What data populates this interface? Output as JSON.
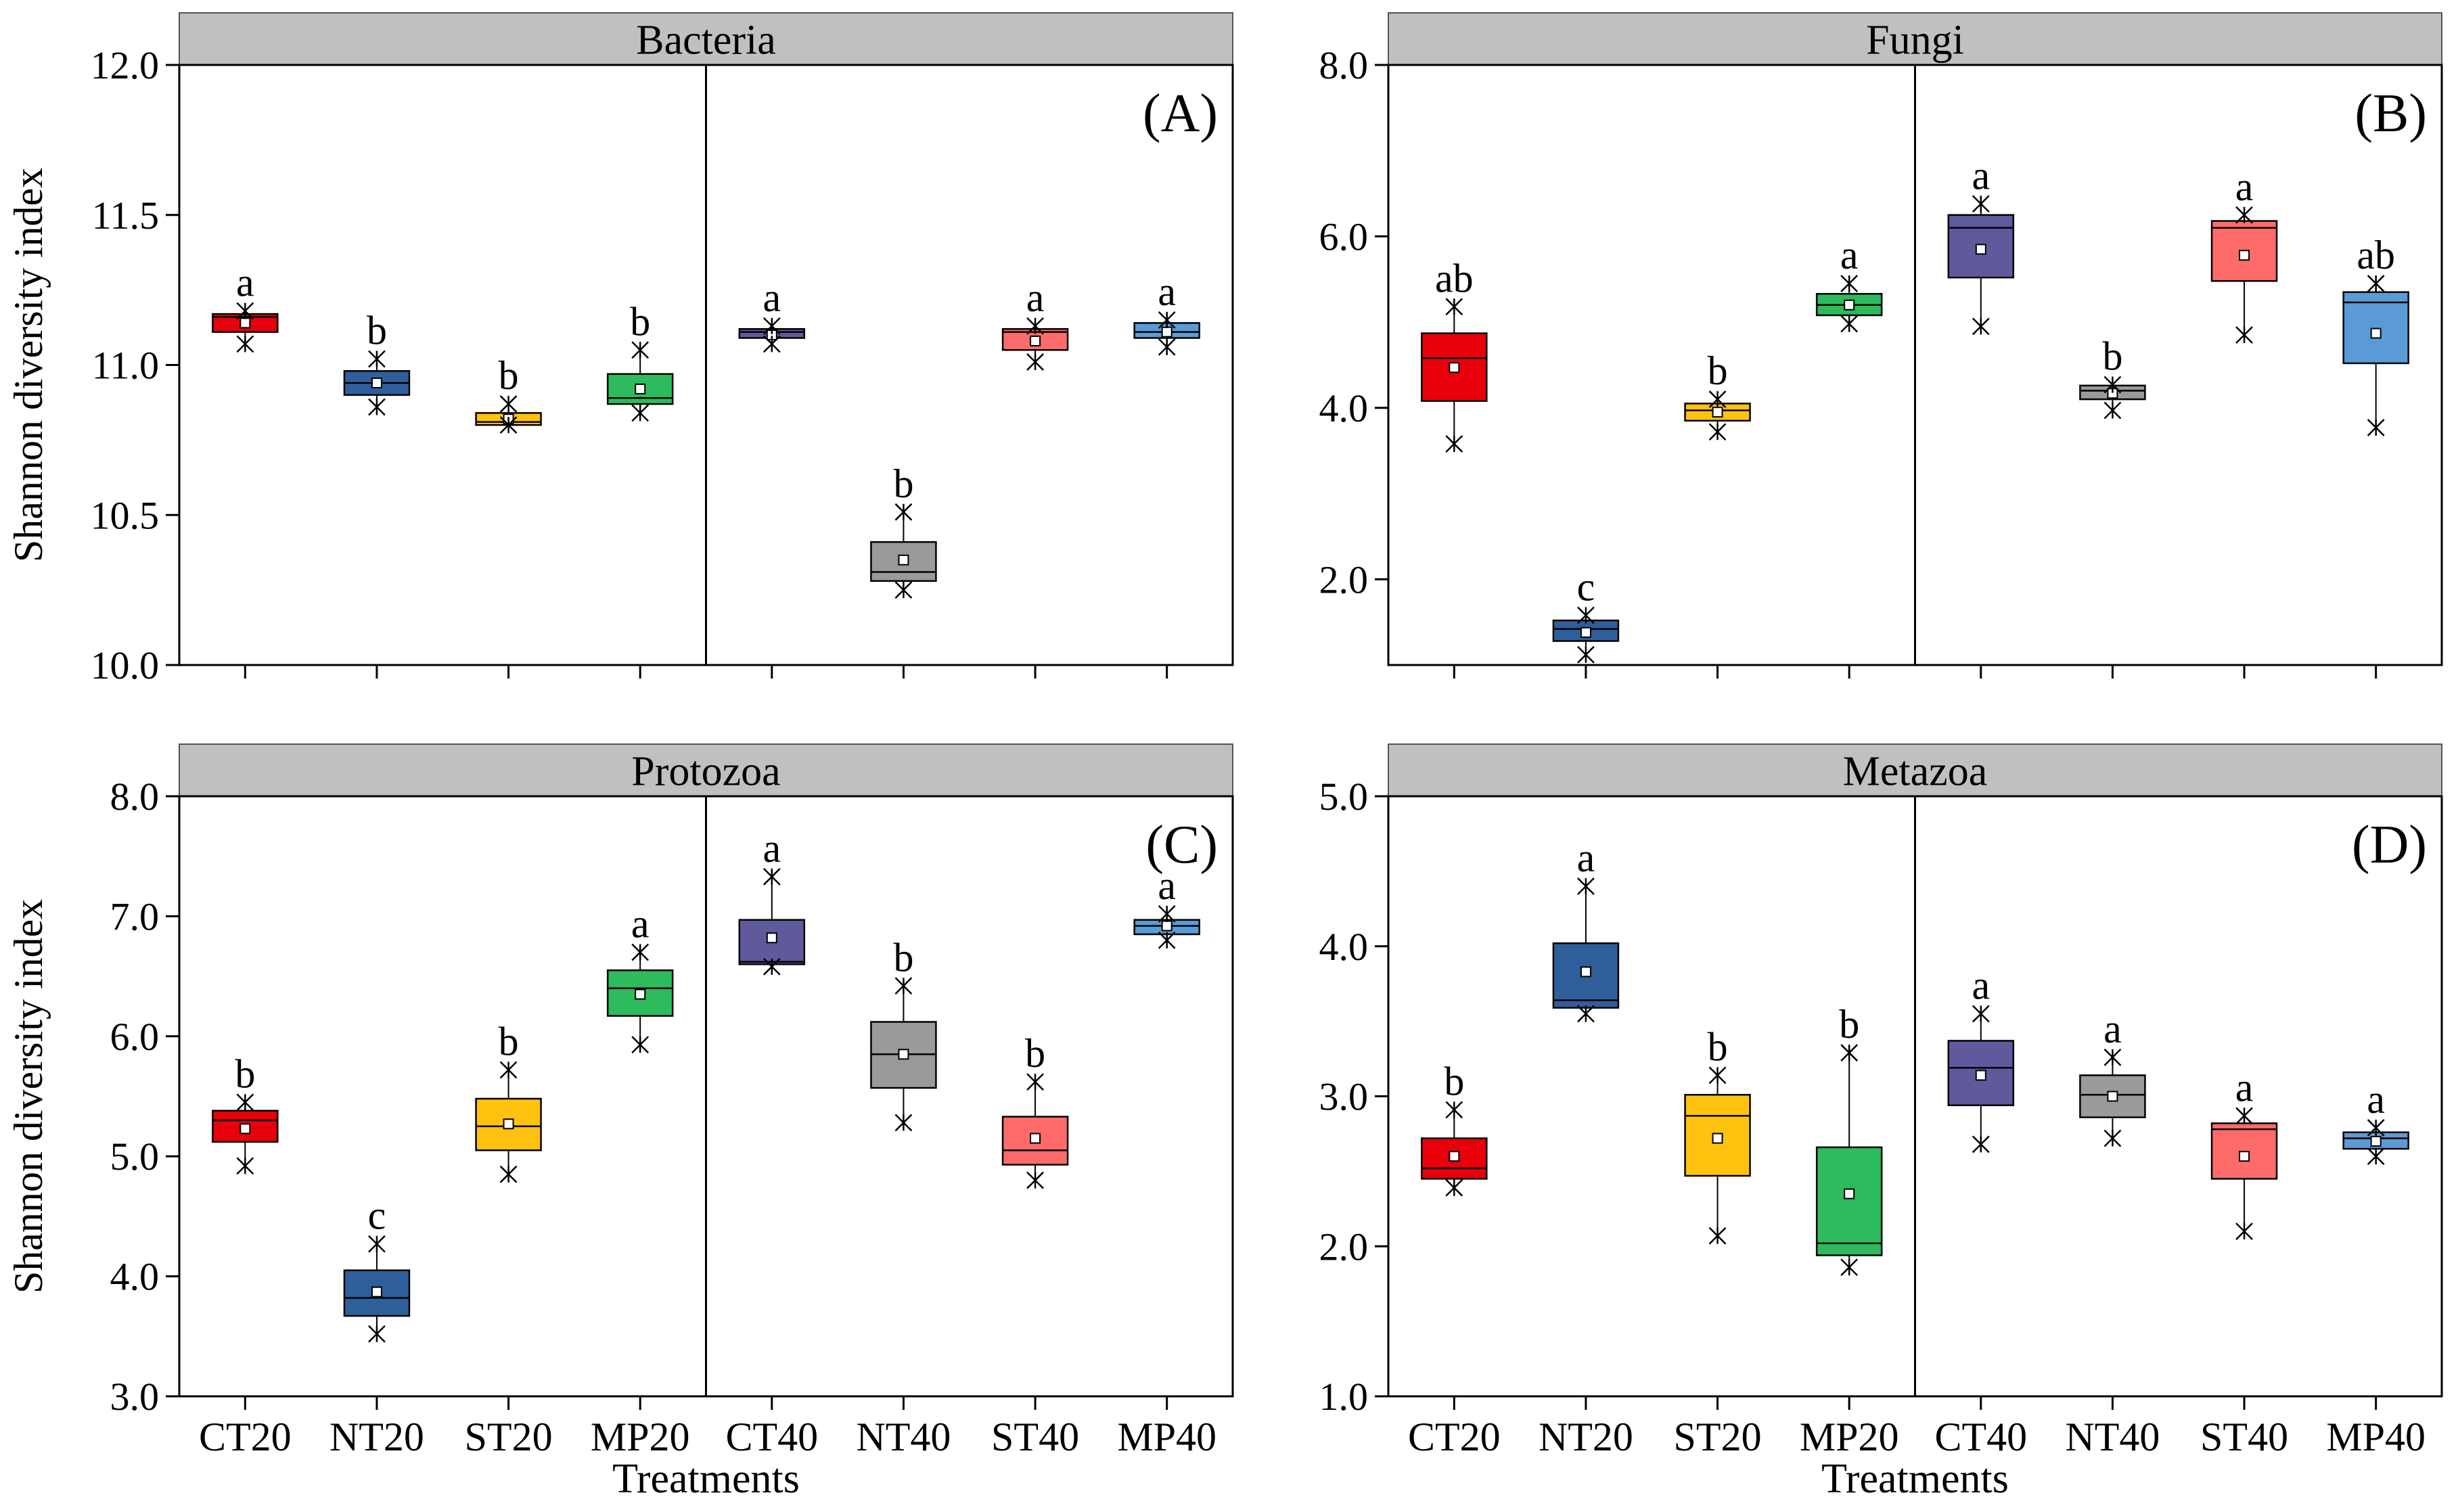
{
  "shared": {
    "y_axis_label": "Shannon diversity index",
    "x_axis_label": "Treatments",
    "treatments": [
      "CT20",
      "NT20",
      "ST20",
      "MP20",
      "CT40",
      "NT40",
      "ST40",
      "MP40"
    ],
    "colors": {
      "CT20": "#e8000b",
      "NT20": "#2f5f9b",
      "ST20": "#ffc20e",
      "MP20": "#2dbb5d",
      "CT40": "#5f5a9c",
      "NT40": "#9a9a9a",
      "ST40": "#ff6b6b",
      "MP40": "#5b9bd5",
      "strip": "#c0c0c0"
    }
  },
  "chart_data": [
    {
      "type": "box",
      "title": "Bacteria",
      "panel_label": "(A)",
      "xlabel": "",
      "ylabel": "Shannon diversity index",
      "ylim": [
        10.0,
        12.0
      ],
      "yticks": [
        10.0,
        10.5,
        11.0,
        11.5,
        12.0
      ],
      "tick_decimals": 1,
      "show_xtick_labels": false,
      "categories": [
        "CT20",
        "NT20",
        "ST20",
        "MP20",
        "CT40",
        "NT40",
        "ST40",
        "MP40"
      ],
      "boxes": [
        {
          "q1": 11.11,
          "median": 11.16,
          "q3": 11.17,
          "mean": 11.14,
          "min": 11.07,
          "max": 11.18,
          "letter": "a"
        },
        {
          "q1": 10.9,
          "median": 10.94,
          "q3": 10.98,
          "mean": 10.94,
          "min": 10.86,
          "max": 11.02,
          "letter": "b"
        },
        {
          "q1": 10.8,
          "median": 10.81,
          "q3": 10.84,
          "mean": 10.82,
          "min": 10.8,
          "max": 10.87,
          "letter": "b"
        },
        {
          "q1": 10.87,
          "median": 10.89,
          "q3": 10.97,
          "mean": 10.92,
          "min": 10.84,
          "max": 11.05,
          "letter": "b"
        },
        {
          "q1": 11.09,
          "median": 11.11,
          "q3": 11.12,
          "mean": 11.1,
          "min": 11.07,
          "max": 11.13,
          "letter": "a"
        },
        {
          "q1": 10.28,
          "median": 10.31,
          "q3": 10.41,
          "mean": 10.35,
          "min": 10.25,
          "max": 10.51,
          "letter": "b"
        },
        {
          "q1": 11.05,
          "median": 11.11,
          "q3": 11.12,
          "mean": 11.08,
          "min": 11.01,
          "max": 11.13,
          "letter": "a"
        },
        {
          "q1": 11.09,
          "median": 11.11,
          "q3": 11.14,
          "mean": 11.11,
          "min": 11.06,
          "max": 11.15,
          "letter": "a"
        }
      ]
    },
    {
      "type": "box",
      "title": "Fungi",
      "panel_label": "(B)",
      "xlabel": "",
      "ylabel": "",
      "ylim": [
        1.0,
        8.0
      ],
      "yticks": [
        2.0,
        4.0,
        6.0,
        8.0
      ],
      "tick_decimals": 1,
      "show_xtick_labels": false,
      "categories": [
        "CT20",
        "NT20",
        "ST20",
        "MP20",
        "CT40",
        "NT40",
        "ST40",
        "MP40"
      ],
      "boxes": [
        {
          "q1": 4.08,
          "median": 4.58,
          "q3": 4.87,
          "mean": 4.47,
          "min": 3.58,
          "max": 5.18,
          "letter": "ab"
        },
        {
          "q1": 1.28,
          "median": 1.42,
          "q3": 1.52,
          "mean": 1.38,
          "min": 1.12,
          "max": 1.58,
          "letter": "c"
        },
        {
          "q1": 3.85,
          "median": 3.97,
          "q3": 4.05,
          "mean": 3.95,
          "min": 3.72,
          "max": 4.1,
          "letter": "b"
        },
        {
          "q1": 5.08,
          "median": 5.2,
          "q3": 5.33,
          "mean": 5.2,
          "min": 4.98,
          "max": 5.45,
          "letter": "a"
        },
        {
          "q1": 5.52,
          "median": 6.1,
          "q3": 6.25,
          "mean": 5.85,
          "min": 4.95,
          "max": 6.38,
          "letter": "a"
        },
        {
          "q1": 4.1,
          "median": 4.2,
          "q3": 4.26,
          "mean": 4.17,
          "min": 3.97,
          "max": 4.27,
          "letter": "b"
        },
        {
          "q1": 5.48,
          "median": 6.1,
          "q3": 6.18,
          "mean": 5.78,
          "min": 4.85,
          "max": 6.25,
          "letter": "a"
        },
        {
          "q1": 4.52,
          "median": 5.23,
          "q3": 5.35,
          "mean": 4.87,
          "min": 3.77,
          "max": 5.45,
          "letter": "ab"
        }
      ]
    },
    {
      "type": "box",
      "title": "Protozoa",
      "panel_label": "(C)",
      "xlabel": "Treatments",
      "ylabel": "Shannon diversity index",
      "ylim": [
        3.0,
        8.0
      ],
      "yticks": [
        3.0,
        4.0,
        5.0,
        6.0,
        7.0,
        8.0
      ],
      "tick_decimals": 1,
      "show_xtick_labels": true,
      "categories": [
        "CT20",
        "NT20",
        "ST20",
        "MP20",
        "CT40",
        "NT40",
        "ST40",
        "MP40"
      ],
      "boxes": [
        {
          "q1": 5.12,
          "median": 5.3,
          "q3": 5.38,
          "mean": 5.23,
          "min": 4.92,
          "max": 5.45,
          "letter": "b"
        },
        {
          "q1": 3.67,
          "median": 3.82,
          "q3": 4.05,
          "mean": 3.87,
          "min": 3.52,
          "max": 4.27,
          "letter": "c"
        },
        {
          "q1": 5.05,
          "median": 5.25,
          "q3": 5.48,
          "mean": 5.27,
          "min": 4.85,
          "max": 5.72,
          "letter": "b"
        },
        {
          "q1": 6.17,
          "median": 6.4,
          "q3": 6.55,
          "mean": 6.35,
          "min": 5.93,
          "max": 6.7,
          "letter": "a"
        },
        {
          "q1": 6.6,
          "median": 6.62,
          "q3": 6.97,
          "mean": 6.82,
          "min": 6.58,
          "max": 7.33,
          "letter": "a"
        },
        {
          "q1": 5.57,
          "median": 5.85,
          "q3": 6.12,
          "mean": 5.85,
          "min": 5.28,
          "max": 6.42,
          "letter": "b"
        },
        {
          "q1": 4.93,
          "median": 5.05,
          "q3": 5.33,
          "mean": 5.15,
          "min": 4.8,
          "max": 5.62,
          "letter": "b"
        },
        {
          "q1": 6.85,
          "median": 6.92,
          "q3": 6.97,
          "mean": 6.92,
          "min": 6.8,
          "max": 7.02,
          "letter": "a"
        }
      ]
    },
    {
      "type": "box",
      "title": "Metazoa",
      "panel_label": "(D)",
      "xlabel": "Treatments",
      "ylabel": "",
      "ylim": [
        1.0,
        5.0
      ],
      "yticks": [
        1.0,
        2.0,
        3.0,
        4.0,
        5.0
      ],
      "tick_decimals": 1,
      "show_xtick_labels": true,
      "categories": [
        "CT20",
        "NT20",
        "ST20",
        "MP20",
        "CT40",
        "NT40",
        "ST40",
        "MP40"
      ],
      "boxes": [
        {
          "q1": 2.45,
          "median": 2.52,
          "q3": 2.72,
          "mean": 2.6,
          "min": 2.39,
          "max": 2.91,
          "letter": "b"
        },
        {
          "q1": 3.59,
          "median": 3.64,
          "q3": 4.02,
          "mean": 3.83,
          "min": 3.55,
          "max": 4.4,
          "letter": "a"
        },
        {
          "q1": 2.47,
          "median": 2.87,
          "q3": 3.01,
          "mean": 2.72,
          "min": 2.07,
          "max": 3.14,
          "letter": "b"
        },
        {
          "q1": 1.94,
          "median": 2.02,
          "q3": 2.66,
          "mean": 2.35,
          "min": 1.86,
          "max": 3.29,
          "letter": "b"
        },
        {
          "q1": 2.94,
          "median": 3.19,
          "q3": 3.37,
          "mean": 3.14,
          "min": 2.68,
          "max": 3.55,
          "letter": "a"
        },
        {
          "q1": 2.86,
          "median": 3.01,
          "q3": 3.14,
          "mean": 3.0,
          "min": 2.72,
          "max": 3.26,
          "letter": "a"
        },
        {
          "q1": 2.45,
          "median": 2.78,
          "q3": 2.82,
          "mean": 2.6,
          "min": 2.1,
          "max": 2.87,
          "letter": "a"
        },
        {
          "q1": 2.65,
          "median": 2.72,
          "q3": 2.76,
          "mean": 2.7,
          "min": 2.6,
          "max": 2.79,
          "letter": "a"
        }
      ]
    }
  ]
}
